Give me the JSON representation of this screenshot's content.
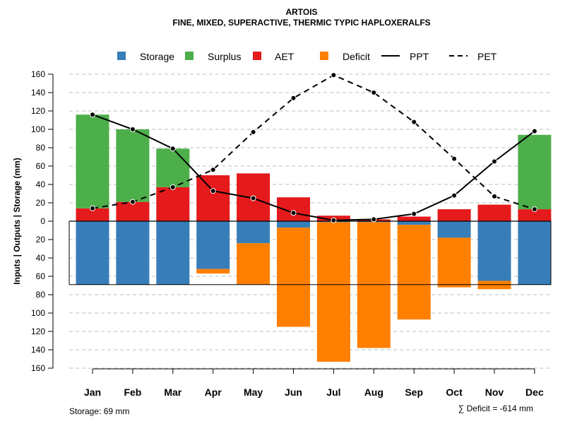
{
  "chart_data": {
    "type": "bar",
    "title": "ARTOIS",
    "subtitle": "FINE, MIXED, SUPERACTIVE, THERMIC TYPIC HAPLOXERALFS",
    "ylabel": "Inputs | Outputs | Storage    (mm)",
    "ylim": [
      -160,
      160
    ],
    "yticks": [
      160,
      140,
      120,
      100,
      80,
      60,
      40,
      20,
      0,
      20,
      40,
      60,
      80,
      100,
      120,
      140,
      160
    ],
    "categories": [
      "Jan",
      "Feb",
      "Mar",
      "Apr",
      "May",
      "Jun",
      "Jul",
      "Aug",
      "Sep",
      "Oct",
      "Nov",
      "Dec"
    ],
    "legend": {
      "storage": "Storage",
      "surplus": "Surplus",
      "aet": "AET",
      "deficit": "Deficit",
      "ppt": "PPT",
      "pet": "PET"
    },
    "colors": {
      "storage": "#377eb8",
      "surplus": "#4daf4a",
      "aet": "#e41a1c",
      "deficit": "#ff7f00",
      "line": "#000000",
      "grid": "#bdbdbd"
    },
    "series": {
      "AET": [
        14,
        21,
        37,
        50,
        52,
        26,
        6,
        2,
        5,
        13,
        18,
        13
      ],
      "Surplus": [
        102,
        79,
        42,
        0,
        0,
        0,
        0,
        0,
        0,
        0,
        0,
        81
      ],
      "Storage": [
        69,
        69,
        69,
        52,
        24,
        7,
        1,
        1,
        4,
        18,
        65,
        69
      ],
      "Deficit": [
        0,
        0,
        0,
        5,
        45,
        108,
        152,
        137,
        103,
        54,
        9,
        0
      ],
      "PPT": [
        116,
        100,
        79,
        33,
        25,
        9,
        1,
        2,
        8,
        28,
        65,
        98
      ],
      "PET": [
        14,
        21,
        37,
        56,
        97,
        134,
        159,
        140,
        108,
        68,
        27,
        13
      ]
    },
    "storage_capacity": 69,
    "footnote_storage": "Storage: 69 mm",
    "footnote_deficit": "∑ Deficit = -614 mm"
  }
}
